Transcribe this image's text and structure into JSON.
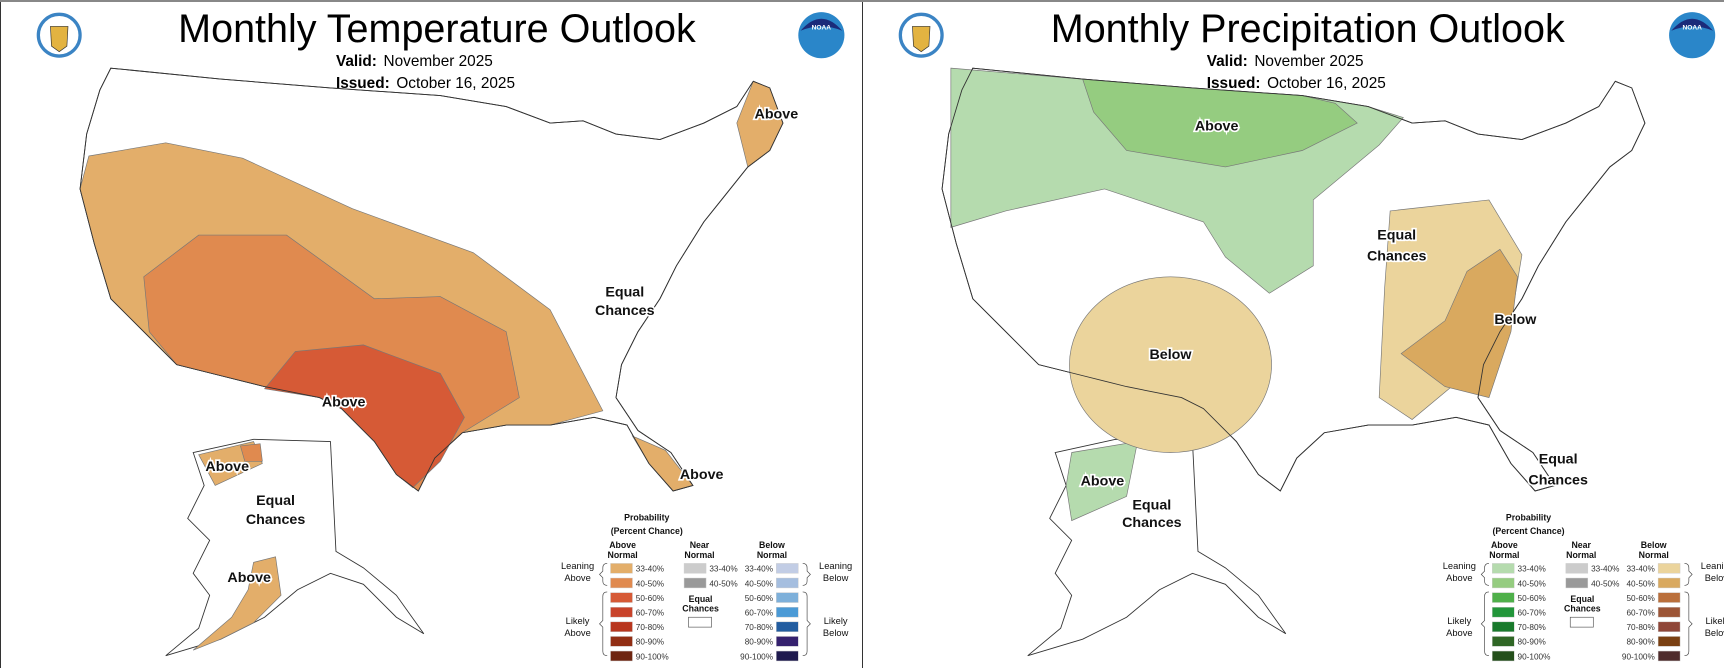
{
  "panels": [
    {
      "id": "temperature",
      "title": "Monthly Temperature Outlook",
      "valid_label": "Valid:",
      "valid_value": "November 2025",
      "issued_label": "Issued:",
      "issued_value": "October 16, 2025",
      "map_labels": [
        "Above",
        "Above",
        "Equal",
        "Chances",
        "Above",
        "Above",
        "Equal",
        "Chances",
        "Above"
      ],
      "regions": [
        {
          "category": "Above 33-40%",
          "color": "#E3AE6A"
        },
        {
          "category": "Above 40-50%",
          "color": "#E08A4F"
        },
        {
          "category": "Above 50-60%",
          "color": "#D65A36"
        }
      ],
      "legend": {
        "title1": "Probability",
        "title2": "(Percent Chance)",
        "above_h1": "Above",
        "above_h2": "Normal",
        "near_h1": "Near",
        "near_h2": "Normal",
        "below_h1": "Below",
        "below_h2": "Normal",
        "equal1": "Equal",
        "equal2": "Chances",
        "leaning_above": [
          "Leaning",
          "Above"
        ],
        "likely_above": [
          "Likely",
          "Above"
        ],
        "leaning_below": [
          "Leaning",
          "Below"
        ],
        "likely_below": [
          "Likely",
          "Below"
        ],
        "ranges": [
          "33-40%",
          "40-50%",
          "50-60%",
          "60-70%",
          "70-80%",
          "80-90%",
          "90-100%"
        ],
        "above_colors": [
          "#E3AE6A",
          "#E08A4F",
          "#D65A36",
          "#C8432A",
          "#B8361E",
          "#912E14",
          "#6E2510"
        ],
        "near_colors": [
          "#CCCCCC",
          "#999999"
        ],
        "below_colors": [
          "#C2CDE5",
          "#A5BEDF",
          "#7EB0DA",
          "#4B9AD6",
          "#225DA0",
          "#35216E",
          "#1F1A4E"
        ]
      }
    },
    {
      "id": "precipitation",
      "title": "Monthly Precipitation Outlook",
      "valid_label": "Valid:",
      "valid_value": "November 2025",
      "issued_label": "Issued:",
      "issued_value": "October 16, 2025",
      "map_labels": [
        "Above",
        "Below",
        "Below",
        "Equal",
        "Chances",
        "Equal",
        "Chances",
        "Above",
        "Equal",
        "Chances"
      ],
      "regions": [
        {
          "category": "Above 33-40%",
          "color": "#B5DBAE"
        },
        {
          "category": "Above 40-50%",
          "color": "#95CC80"
        },
        {
          "category": "Below 33-40%",
          "color": "#EBD49C"
        },
        {
          "category": "Below 40-50%",
          "color": "#D9A95F"
        }
      ],
      "legend": {
        "title1": "Probability",
        "title2": "(Percent Chance)",
        "above_h1": "Above",
        "above_h2": "Normal",
        "near_h1": "Near",
        "near_h2": "Normal",
        "below_h1": "Below",
        "below_h2": "Normal",
        "equal1": "Equal",
        "equal2": "Chances",
        "leaning_above": [
          "Leaning",
          "Above"
        ],
        "likely_above": [
          "Likely",
          "Above"
        ],
        "leaning_below": [
          "Leaning",
          "Below"
        ],
        "likely_below": [
          "Likely",
          "Below"
        ],
        "ranges": [
          "33-40%",
          "40-50%",
          "50-60%",
          "60-70%",
          "70-80%",
          "80-90%",
          "90-100%"
        ],
        "above_colors": [
          "#B5DBAE",
          "#95CC80",
          "#4FB04A",
          "#22963A",
          "#197A2C",
          "#2F6625",
          "#244F1B"
        ],
        "near_colors": [
          "#CCCCCC",
          "#999999"
        ],
        "below_colors": [
          "#EBD49C",
          "#D9A95F",
          "#BA6F3B",
          "#9C5536",
          "#8F4638",
          "#7A4012",
          "#4F2C2C"
        ]
      }
    }
  ]
}
